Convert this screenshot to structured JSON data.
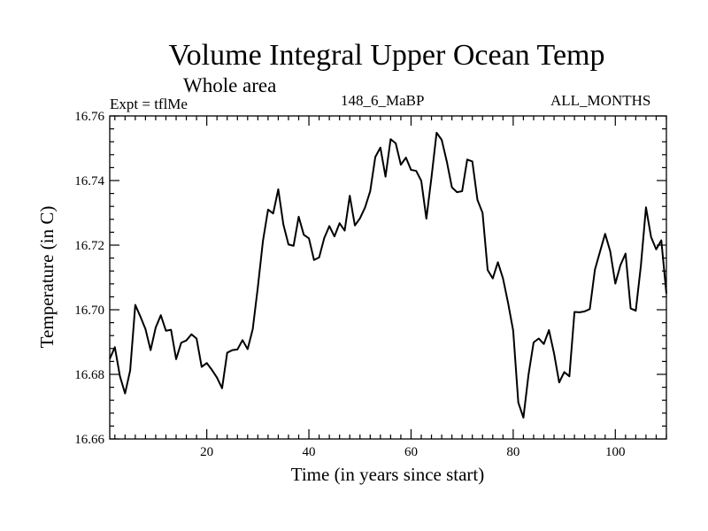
{
  "chart_data": {
    "type": "line",
    "title": "Volume Integral Upper Ocean Temp",
    "subtitle": "Whole area",
    "annotations": {
      "left": "Expt = tflMe",
      "center": "148_6_MaBP",
      "right": "ALL_MONTHS"
    },
    "xlabel": "Time (in years since start)",
    "ylabel": "Temperature (in C)",
    "xlim": [
      1,
      110
    ],
    "ylim": [
      16.66,
      16.76
    ],
    "xticks": [
      20,
      40,
      60,
      80,
      100
    ],
    "xtick_labels": [
      "20",
      "40",
      "60",
      "80",
      "100"
    ],
    "yticks": [
      16.66,
      16.68,
      16.7,
      16.72,
      16.74,
      16.76
    ],
    "ytick_labels": [
      "16.66",
      "16.68",
      "16.70",
      "16.72",
      "16.74",
      "16.76"
    ],
    "grid": false,
    "series": [
      {
        "name": "Volume Integral Upper Ocean Temp",
        "x": [
          1,
          2,
          3,
          4,
          5,
          6,
          7,
          8,
          9,
          10,
          11,
          12,
          13,
          14,
          15,
          16,
          17,
          18,
          19,
          20,
          21,
          22,
          23,
          24,
          25,
          26,
          27,
          28,
          29,
          30,
          31,
          32,
          33,
          34,
          35,
          36,
          37,
          38,
          39,
          40,
          41,
          42,
          43,
          44,
          45,
          46,
          47,
          48,
          49,
          50,
          51,
          52,
          53,
          54,
          55,
          56,
          57,
          58,
          59,
          60,
          61,
          62,
          63,
          64,
          65,
          66,
          67,
          68,
          69,
          70,
          71,
          72,
          73,
          74,
          75,
          76,
          77,
          78,
          79,
          80,
          81,
          82,
          83,
          84,
          85,
          86,
          87,
          88,
          89,
          90,
          91,
          92,
          93,
          94,
          95,
          96,
          97,
          98,
          99,
          100,
          101,
          102,
          103,
          104,
          105,
          106,
          107,
          108,
          109,
          110
        ],
        "values": [
          16.6848,
          16.6884,
          16.6794,
          16.6741,
          16.6812,
          16.7015,
          16.6979,
          16.694,
          16.6875,
          16.6945,
          16.6983,
          16.6935,
          16.6938,
          16.6847,
          16.6898,
          16.6905,
          16.6924,
          16.6911,
          16.6823,
          16.6835,
          16.6814,
          16.679,
          16.6757,
          16.6867,
          16.6875,
          16.6877,
          16.6906,
          16.6878,
          16.694,
          16.707,
          16.7213,
          16.731,
          16.7298,
          16.7373,
          16.7264,
          16.7202,
          16.7198,
          16.7288,
          16.7232,
          16.7221,
          16.7154,
          16.7162,
          16.7222,
          16.7259,
          16.7227,
          16.7268,
          16.7245,
          16.7353,
          16.7261,
          16.7283,
          16.7317,
          16.7367,
          16.7473,
          16.7502,
          16.7412,
          16.7528,
          16.7515,
          16.7449,
          16.7471,
          16.7433,
          16.743,
          16.7399,
          16.7282,
          16.741,
          16.7548,
          16.7526,
          16.7459,
          16.7379,
          16.7364,
          16.7367,
          16.7465,
          16.7459,
          16.734,
          16.73,
          16.7123,
          16.7097,
          16.7147,
          16.7097,
          16.7021,
          16.6935,
          16.6713,
          16.6666,
          16.6799,
          16.6899,
          16.6911,
          16.6894,
          16.6937,
          16.6865,
          16.6775,
          16.6807,
          16.6794,
          16.6993,
          16.6992,
          16.6995,
          16.7002,
          16.7124,
          16.718,
          16.7235,
          16.7181,
          16.7081,
          16.7138,
          16.7174,
          16.7004,
          16.6997,
          16.7136,
          16.7317,
          16.7225,
          16.7187,
          16.7215,
          16.705
        ]
      }
    ]
  }
}
